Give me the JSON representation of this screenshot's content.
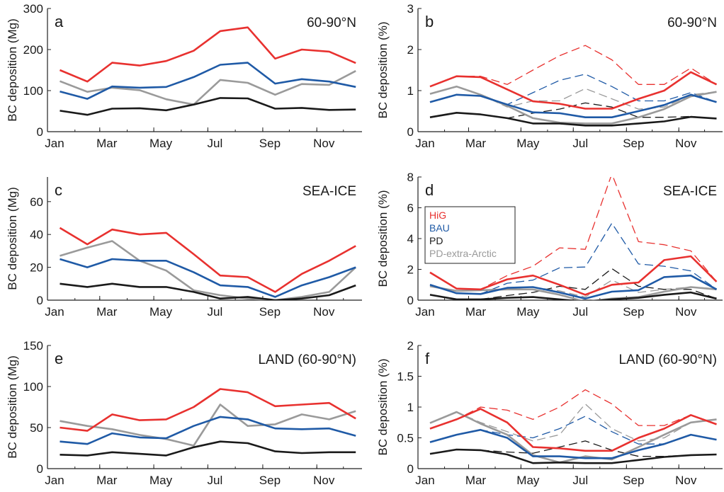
{
  "figure": {
    "month_ticks": [
      "Jan",
      "Mar",
      "May",
      "Jul",
      "Sep",
      "Nov"
    ],
    "series_colors": {
      "HiG": "#e8312f",
      "BAU": "#1f5aa6",
      "PD": "#1a1a1a",
      "PD-extra-Arctic": "#9a9a9a"
    }
  },
  "chart_data": [
    {
      "panel": "a",
      "region": "60-90°N",
      "type": "line",
      "ylabel": "BC deposition (Mg)",
      "ylim": [
        0,
        300
      ],
      "yticks": [
        0,
        100,
        200,
        300
      ],
      "x": [
        "Jan",
        "Feb",
        "Mar",
        "Apr",
        "May",
        "Jun",
        "Jul",
        "Aug",
        "Sep",
        "Oct",
        "Nov",
        "Dec"
      ],
      "series": [
        {
          "name": "HiG",
          "style": "solid",
          "values": [
            150,
            122,
            168,
            161,
            172,
            197,
            245,
            254,
            178,
            200,
            195,
            167
          ]
        },
        {
          "name": "BAU",
          "style": "solid",
          "values": [
            98,
            80,
            110,
            107,
            109,
            133,
            163,
            168,
            117,
            128,
            122,
            109
          ]
        },
        {
          "name": "PD",
          "style": "solid",
          "values": [
            51,
            41,
            56,
            57,
            52,
            66,
            82,
            81,
            56,
            58,
            53,
            54
          ]
        },
        {
          "name": "PD-extra-Arctic",
          "style": "solid",
          "values": [
            123,
            97,
            107,
            101,
            79,
            66,
            126,
            119,
            90,
            116,
            114,
            148
          ]
        }
      ]
    },
    {
      "panel": "b",
      "region": "60-90°N",
      "type": "line",
      "ylabel": "BC deposition (%)",
      "ylim": [
        0,
        3
      ],
      "yticks": [
        0,
        1,
        2,
        3
      ],
      "x": [
        "Jan",
        "Feb",
        "Mar",
        "Apr",
        "May",
        "Jun",
        "Jul",
        "Aug",
        "Sep",
        "Oct",
        "Nov",
        "Dec"
      ],
      "series": [
        {
          "name": "HiG",
          "style": "solid",
          "values": [
            1.1,
            1.35,
            1.33,
            1.03,
            0.74,
            0.68,
            0.56,
            0.56,
            0.8,
            1.0,
            1.45,
            1.15
          ]
        },
        {
          "name": "BAU",
          "style": "solid",
          "values": [
            0.72,
            0.9,
            0.87,
            0.66,
            0.47,
            0.45,
            0.35,
            0.35,
            0.5,
            0.65,
            0.9,
            0.72
          ]
        },
        {
          "name": "PD",
          "style": "solid",
          "values": [
            0.35,
            0.46,
            0.42,
            0.33,
            0.2,
            0.2,
            0.15,
            0.15,
            0.2,
            0.25,
            0.36,
            0.32
          ]
        },
        {
          "name": "PD-extra-Arctic",
          "style": "solid",
          "values": [
            0.92,
            1.1,
            0.9,
            0.63,
            0.33,
            0.22,
            0.2,
            0.2,
            0.35,
            0.55,
            0.86,
            0.97
          ]
        },
        {
          "name": "HiG",
          "style": "dashed",
          "values": [
            1.1,
            1.35,
            1.35,
            1.15,
            1.5,
            1.85,
            2.1,
            1.75,
            1.15,
            1.15,
            1.55,
            1.15
          ]
        },
        {
          "name": "BAU",
          "style": "dashed",
          "values": [
            0.72,
            0.9,
            0.87,
            0.66,
            0.95,
            1.25,
            1.4,
            1.1,
            0.75,
            0.75,
            0.95,
            0.72
          ]
        },
        {
          "name": "PD",
          "style": "dashed",
          "values": [
            0.35,
            0.46,
            0.42,
            0.33,
            0.45,
            0.55,
            0.7,
            0.6,
            0.35,
            0.35,
            0.37,
            0.32
          ]
        },
        {
          "name": "PD-extra-Arctic",
          "style": "dashed",
          "values": [
            0.92,
            1.1,
            0.9,
            0.6,
            0.75,
            0.75,
            1.05,
            0.8,
            0.55,
            0.6,
            0.9,
            0.97
          ]
        }
      ]
    },
    {
      "panel": "c",
      "region": "SEA-ICE",
      "type": "line",
      "ylabel": "BC deposition (Mg)",
      "ylim": [
        0,
        75
      ],
      "yticks": [
        0,
        20,
        40,
        60
      ],
      "x": [
        "Jan",
        "Feb",
        "Mar",
        "Apr",
        "May",
        "Jun",
        "Jul",
        "Aug",
        "Sep",
        "Oct",
        "Nov",
        "Dec"
      ],
      "series": [
        {
          "name": "HiG",
          "style": "solid",
          "values": [
            44,
            34,
            43,
            40,
            41,
            28,
            15,
            14,
            5,
            16,
            24,
            33
          ]
        },
        {
          "name": "BAU",
          "style": "solid",
          "values": [
            25,
            20,
            25,
            24,
            24,
            17,
            9,
            8,
            2,
            9,
            14,
            20
          ]
        },
        {
          "name": "PD",
          "style": "solid",
          "values": [
            10,
            8,
            10,
            8,
            8,
            5,
            1,
            2,
            0,
            1,
            3,
            9
          ]
        },
        {
          "name": "PD-extra-Arctic",
          "style": "solid",
          "values": [
            27,
            32,
            36,
            24,
            18,
            6,
            3,
            1,
            0,
            2,
            5,
            20
          ]
        }
      ]
    },
    {
      "panel": "d",
      "region": "SEA-ICE",
      "type": "line",
      "ylabel": "BC deposition (%)",
      "ylim": [
        0,
        8
      ],
      "yticks": [
        0,
        2,
        4,
        6,
        8
      ],
      "legend": [
        "HiG",
        "BAU",
        "PD",
        "PD-extra-Arctic"
      ],
      "x": [
        "Jan",
        "Feb",
        "Mar",
        "Apr",
        "May",
        "Jun",
        "Jul",
        "Aug",
        "Sep",
        "Oct",
        "Nov",
        "Dec"
      ],
      "series": [
        {
          "name": "HiG",
          "style": "solid",
          "values": [
            1.8,
            0.75,
            0.7,
            1.35,
            1.6,
            1.0,
            0.35,
            1.0,
            1.15,
            2.6,
            2.85,
            1.2
          ]
        },
        {
          "name": "BAU",
          "style": "solid",
          "values": [
            1.0,
            0.45,
            0.4,
            0.8,
            0.85,
            0.5,
            0.1,
            0.55,
            0.65,
            1.5,
            1.6,
            0.7
          ]
        },
        {
          "name": "PD",
          "style": "solid",
          "values": [
            0.35,
            0.05,
            0.05,
            0.15,
            0.2,
            0.05,
            -0.1,
            0.05,
            0.15,
            0.35,
            0.5,
            0.1
          ]
        },
        {
          "name": "PD-extra-Arctic",
          "style": "solid",
          "values": [
            0.9,
            0.6,
            0.65,
            0.7,
            0.7,
            0.35,
            -0.1,
            0.1,
            0.2,
            0.55,
            0.85,
            0.7
          ]
        },
        {
          "name": "HiG",
          "style": "dashed",
          "values": [
            1.8,
            0.75,
            0.7,
            1.6,
            2.2,
            3.4,
            3.3,
            8.2,
            3.8,
            3.6,
            3.2,
            1.2
          ]
        },
        {
          "name": "BAU",
          "style": "dashed",
          "values": [
            1.0,
            0.45,
            0.4,
            1.1,
            1.3,
            2.1,
            2.15,
            5.0,
            2.35,
            2.2,
            1.9,
            0.7
          ]
        },
        {
          "name": "PD",
          "style": "dashed",
          "values": [
            0.35,
            0.05,
            0.05,
            0.3,
            0.5,
            0.9,
            0.7,
            2.05,
            0.9,
            0.7,
            0.7,
            0.1
          ]
        },
        {
          "name": "PD-extra-Arctic",
          "style": "dashed",
          "values": [
            0.9,
            0.6,
            0.65,
            0.75,
            0.85,
            0.6,
            0.2,
            1.3,
            0.5,
            0.7,
            0.85,
            0.75
          ]
        }
      ]
    },
    {
      "panel": "e",
      "region": "LAND (60-90°N)",
      "type": "line",
      "ylabel": "BC deposition (Mg)",
      "ylim": [
        0,
        150
      ],
      "yticks": [
        0,
        50,
        100,
        150
      ],
      "x": [
        "Jan",
        "Feb",
        "Mar",
        "Apr",
        "May",
        "Jun",
        "Jul",
        "Aug",
        "Sep",
        "Oct",
        "Nov",
        "Dec"
      ],
      "series": [
        {
          "name": "HiG",
          "style": "solid",
          "values": [
            50,
            46,
            66,
            59,
            60,
            75,
            97,
            93,
            76,
            78,
            80,
            61
          ]
        },
        {
          "name": "BAU",
          "style": "solid",
          "values": [
            33,
            30,
            43,
            38,
            37,
            52,
            63,
            60,
            49,
            48,
            49,
            40
          ]
        },
        {
          "name": "PD",
          "style": "solid",
          "values": [
            17,
            16,
            20,
            18,
            16,
            26,
            33,
            31,
            21,
            19,
            20,
            20
          ]
        },
        {
          "name": "PD-extra-Arctic",
          "style": "solid",
          "values": [
            58,
            52,
            48,
            41,
            36,
            28,
            78,
            52,
            54,
            66,
            60,
            70
          ]
        }
      ]
    },
    {
      "panel": "f",
      "region": "LAND (60-90°N)",
      "type": "line",
      "ylabel": "BC deposition (%)",
      "ylim": [
        0,
        2.0
      ],
      "yticks": [
        0.0,
        0.5,
        1.0,
        1.5,
        2.0
      ],
      "x": [
        "Jan",
        "Feb",
        "Mar",
        "Apr",
        "May",
        "Jun",
        "Jul",
        "Aug",
        "Sep",
        "Oct",
        "Nov",
        "Dec"
      ],
      "series": [
        {
          "name": "HiG",
          "style": "solid",
          "values": [
            0.65,
            0.8,
            0.97,
            0.75,
            0.35,
            0.33,
            0.29,
            0.29,
            0.5,
            0.65,
            0.87,
            0.72
          ]
        },
        {
          "name": "BAU",
          "style": "solid",
          "values": [
            0.43,
            0.55,
            0.63,
            0.5,
            0.2,
            0.2,
            0.17,
            0.17,
            0.3,
            0.4,
            0.55,
            0.47
          ]
        },
        {
          "name": "PD",
          "style": "solid",
          "values": [
            0.24,
            0.31,
            0.3,
            0.23,
            0.09,
            0.1,
            0.09,
            0.09,
            0.14,
            0.19,
            0.22,
            0.23
          ]
        },
        {
          "name": "PD-extra-Arctic",
          "style": "solid",
          "values": [
            0.74,
            0.92,
            0.73,
            0.55,
            0.22,
            0.1,
            0.2,
            0.15,
            0.35,
            0.55,
            0.75,
            0.8
          ]
        },
        {
          "name": "HiG",
          "style": "dashed",
          "values": [
            0.65,
            0.8,
            1.0,
            0.95,
            0.8,
            1.0,
            1.28,
            1.05,
            0.7,
            0.7,
            0.87,
            0.72
          ]
        },
        {
          "name": "BAU",
          "style": "dashed",
          "values": [
            0.43,
            0.55,
            0.63,
            0.55,
            0.5,
            0.65,
            0.85,
            0.6,
            0.4,
            0.4,
            0.55,
            0.47
          ]
        },
        {
          "name": "PD",
          "style": "dashed",
          "values": [
            0.24,
            0.31,
            0.3,
            0.27,
            0.25,
            0.35,
            0.45,
            0.3,
            0.2,
            0.2,
            0.22,
            0.23
          ]
        },
        {
          "name": "PD-extra-Arctic",
          "style": "dashed",
          "values": [
            0.74,
            0.92,
            0.75,
            0.6,
            0.45,
            0.55,
            1.05,
            0.65,
            0.45,
            0.5,
            0.75,
            0.8
          ]
        }
      ]
    }
  ]
}
